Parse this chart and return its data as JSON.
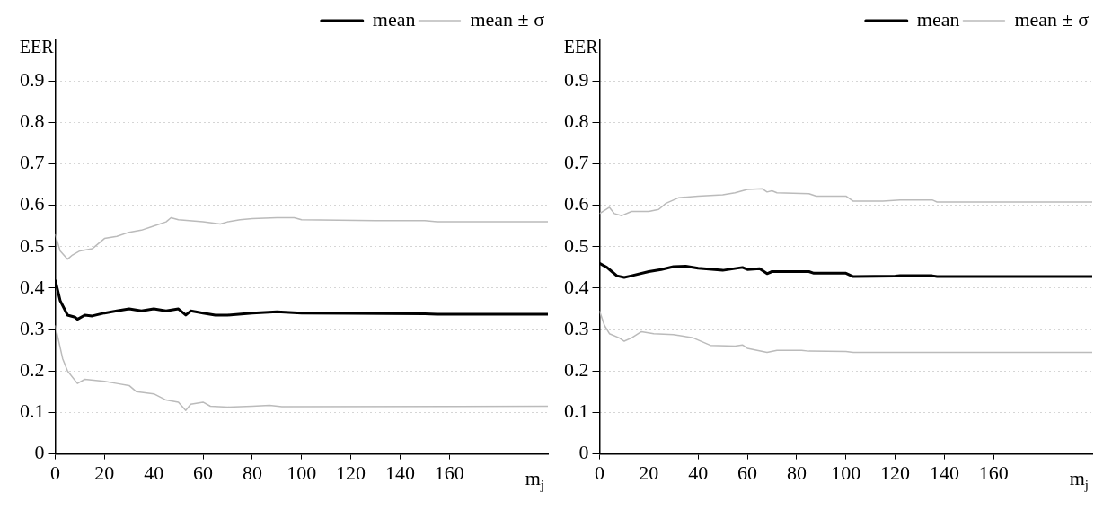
{
  "chart_data": [
    {
      "type": "line",
      "ylabel": "EER",
      "xlabel": "m$_{j}$",
      "xlim": [
        0,
        200
      ],
      "xticks": [
        0,
        20,
        40,
        60,
        80,
        100,
        120,
        140,
        160
      ],
      "ylim": [
        0,
        1
      ],
      "yticks": [
        0,
        0.1,
        0.2,
        0.3,
        0.4,
        0.5,
        0.6,
        0.7,
        0.8,
        0.9
      ],
      "grid": "y",
      "legend": "top right",
      "marker": "none",
      "line_style": "solid",
      "series": [
        {
          "name": "mean",
          "color": "#000000",
          "x": [
            0,
            2,
            5,
            8,
            9,
            12,
            15,
            20,
            25,
            30,
            35,
            40,
            45,
            50,
            53,
            55,
            60,
            65,
            70,
            80,
            90,
            100,
            120,
            150,
            155,
            200
          ],
          "values": [
            0.42,
            0.37,
            0.335,
            0.33,
            0.325,
            0.335,
            0.333,
            0.34,
            0.345,
            0.35,
            0.345,
            0.35,
            0.345,
            0.35,
            0.335,
            0.345,
            0.34,
            0.335,
            0.335,
            0.34,
            0.343,
            0.34,
            0.339,
            0.338,
            0.337,
            0.337
          ]
        },
        {
          "name": "mean ± σ",
          "color": "#bbbbbb",
          "x": [
            0,
            2,
            5,
            7,
            10,
            15,
            20,
            25,
            30,
            35,
            40,
            45,
            47,
            50,
            60,
            67,
            70,
            75,
            80,
            90,
            97,
            100,
            130,
            150,
            155,
            200
          ],
          "values": [
            0.53,
            0.49,
            0.47,
            0.48,
            0.49,
            0.495,
            0.52,
            0.525,
            0.535,
            0.54,
            0.55,
            0.56,
            0.57,
            0.565,
            0.56,
            0.555,
            0.56,
            0.565,
            0.568,
            0.57,
            0.57,
            0.565,
            0.563,
            0.563,
            0.56,
            0.56
          ]
        },
        {
          "color": "#bbbbbb",
          "x": [
            0,
            3,
            5,
            9,
            12,
            20,
            25,
            30,
            33,
            40,
            45,
            50,
            53,
            55,
            60,
            63,
            70,
            80,
            87,
            92,
            200
          ],
          "values": [
            0.31,
            0.23,
            0.2,
            0.17,
            0.18,
            0.175,
            0.17,
            0.165,
            0.15,
            0.145,
            0.13,
            0.125,
            0.105,
            0.12,
            0.125,
            0.115,
            0.113,
            0.115,
            0.117,
            0.114,
            0.115
          ]
        }
      ]
    },
    {
      "type": "line",
      "ylabel": "EER",
      "xlabel": "m$_{j}$",
      "xlim": [
        0,
        200
      ],
      "xticks": [
        0,
        20,
        40,
        60,
        80,
        100,
        120,
        140,
        160
      ],
      "ylim": [
        0,
        1
      ],
      "yticks": [
        0,
        0.1,
        0.2,
        0.3,
        0.4,
        0.5,
        0.6,
        0.7,
        0.8,
        0.9
      ],
      "grid": "y",
      "legend": "top right",
      "marker": "none",
      "line_style": "solid",
      "series": [
        {
          "name": "mean",
          "color": "#000000",
          "x": [
            0,
            3,
            5,
            7,
            10,
            13,
            20,
            25,
            30,
            35,
            40,
            50,
            58,
            60,
            65,
            68,
            70,
            85,
            87,
            100,
            103,
            120,
            122,
            135,
            137,
            200
          ],
          "values": [
            0.46,
            0.45,
            0.44,
            0.43,
            0.426,
            0.43,
            0.44,
            0.445,
            0.452,
            0.453,
            0.448,
            0.443,
            0.45,
            0.445,
            0.447,
            0.435,
            0.44,
            0.44,
            0.436,
            0.436,
            0.428,
            0.429,
            0.43,
            0.43,
            0.428,
            0.428
          ]
        },
        {
          "name": "mean ± σ",
          "color": "#bbbbbb",
          "x": [
            0,
            4,
            6,
            9,
            13,
            20,
            24,
            27,
            32,
            40,
            50,
            55,
            60,
            66,
            68,
            70,
            72,
            85,
            88,
            100,
            103,
            115,
            122,
            135,
            137,
            200
          ],
          "values": [
            0.58,
            0.595,
            0.58,
            0.575,
            0.585,
            0.585,
            0.59,
            0.605,
            0.618,
            0.622,
            0.625,
            0.63,
            0.638,
            0.64,
            0.632,
            0.635,
            0.63,
            0.628,
            0.622,
            0.622,
            0.61,
            0.61,
            0.613,
            0.613,
            0.608,
            0.608
          ]
        },
        {
          "color": "#bbbbbb",
          "x": [
            0,
            2,
            4,
            8,
            10,
            13,
            17,
            22,
            30,
            38,
            45,
            55,
            58,
            60,
            68,
            72,
            82,
            85,
            100,
            103,
            200
          ],
          "values": [
            0.345,
            0.31,
            0.29,
            0.28,
            0.272,
            0.28,
            0.295,
            0.29,
            0.288,
            0.28,
            0.262,
            0.26,
            0.263,
            0.255,
            0.245,
            0.25,
            0.25,
            0.248,
            0.247,
            0.245,
            0.245
          ]
        }
      ]
    }
  ]
}
